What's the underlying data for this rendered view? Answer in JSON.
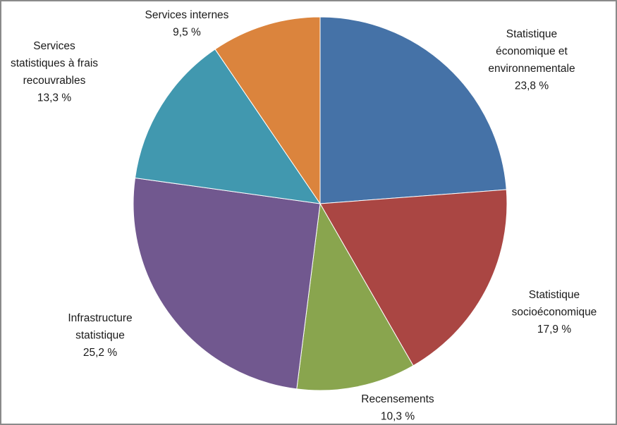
{
  "chart_data": {
    "type": "pie",
    "title": "",
    "start_angle": "12 o'clock",
    "direction": "clockwise",
    "slices": [
      {
        "label_lines": [
          "Statistique",
          "économique et",
          "environnementale"
        ],
        "value": 23.8,
        "value_label": "23,8 %",
        "color": "#4572A7"
      },
      {
        "label_lines": [
          "Statistique",
          "socioéconomique"
        ],
        "value": 17.9,
        "value_label": "17,9 %",
        "color": "#AA4643"
      },
      {
        "label_lines": [
          "Recensements"
        ],
        "value": 10.3,
        "value_label": "10,3 %",
        "color": "#89A54E"
      },
      {
        "label_lines": [
          "Infrastructure",
          "statistique"
        ],
        "value": 25.2,
        "value_label": "25,2 %",
        "color": "#71588F"
      },
      {
        "label_lines": [
          "Services",
          "statistiques à frais",
          "recouvrables"
        ],
        "value": 13.3,
        "value_label": "13,3 %",
        "color": "#4198AF"
      },
      {
        "label_lines": [
          "Services internes"
        ],
        "value": 9.5,
        "value_label": "9,5 %",
        "color": "#DB843D"
      }
    ],
    "legend": "none (data labels outside slices)"
  }
}
